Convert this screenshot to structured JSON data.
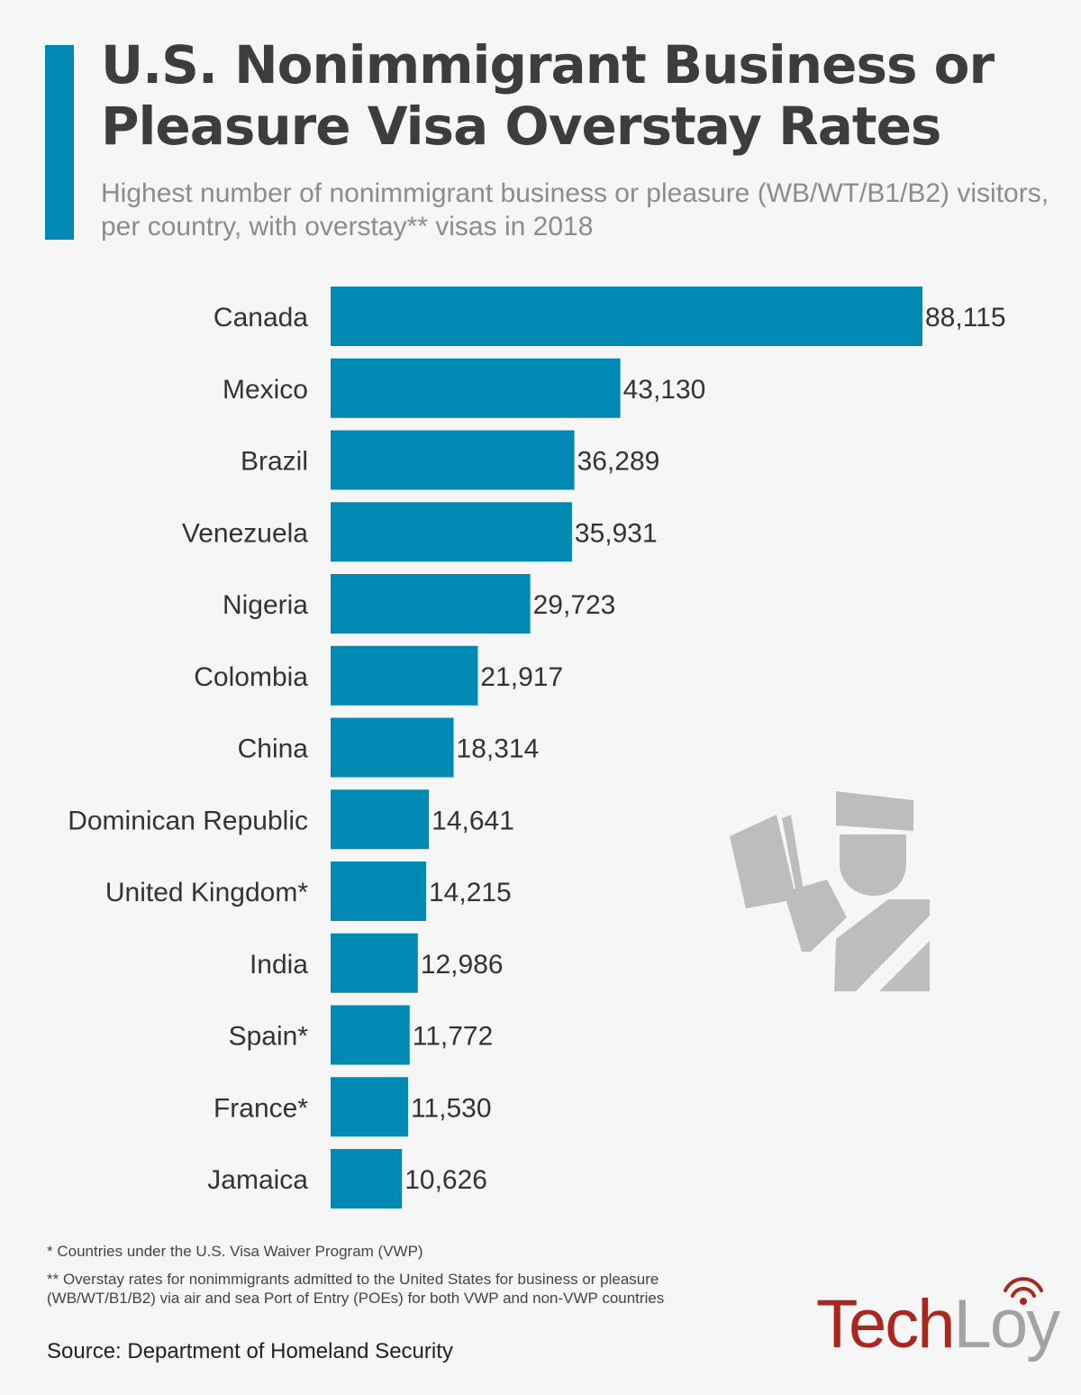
{
  "header": {
    "title": "U.S. Nonimmigrant Business or Pleasure Visa Overstay Rates",
    "subtitle": "Highest number of nonimmigrant business or pleasure (WB/WT/B1/B2) visitors, per country, with overstay** visas in 2018"
  },
  "chart_data": {
    "type": "bar",
    "orientation": "horizontal",
    "title": "U.S. Nonimmigrant Business or Pleasure Visa Overstay Rates",
    "categories": [
      "Canada",
      "Mexico",
      "Brazil",
      "Venezuela",
      "Nigeria",
      "Colombia",
      "China",
      "Dominican Republic",
      "United Kingdom*",
      "India",
      "Spain*",
      "France*",
      "Jamaica"
    ],
    "values": [
      88115,
      43130,
      36289,
      35931,
      29723,
      21917,
      18314,
      14641,
      14215,
      12986,
      11772,
      11530,
      10626
    ],
    "value_labels": [
      "88,115",
      "43,130",
      "36,289",
      "35,931",
      "29,723",
      "21,917",
      "18,314",
      "14,641",
      "14,215",
      "12,986",
      "11,772",
      "11,530",
      "10,626"
    ],
    "xlabel": "",
    "ylabel": "",
    "xlim": [
      0,
      88115
    ],
    "grid": false,
    "legend": "none",
    "bar_color": "#0089b3"
  },
  "illustration": {
    "icon": "customs-officer-reading-passport-icon",
    "color": "#bdbdbd"
  },
  "footnotes": {
    "note1": "* Countries under the U.S. Visa Waiver Program (VWP)",
    "note2": "** Overstay rates for nonimmigrants admitted to the United States for business or pleasure (WB/WT/B1/B2) via air and sea Port of Entry (POEs) for both VWP and non-VWP countries",
    "source": "Source: Department of Homeland Security"
  },
  "logo": {
    "part1": "Tech",
    "part2": "Loy",
    "color1": "#a8281f",
    "color2": "#a3a3a3",
    "icon": "wifi-signal-icon"
  }
}
